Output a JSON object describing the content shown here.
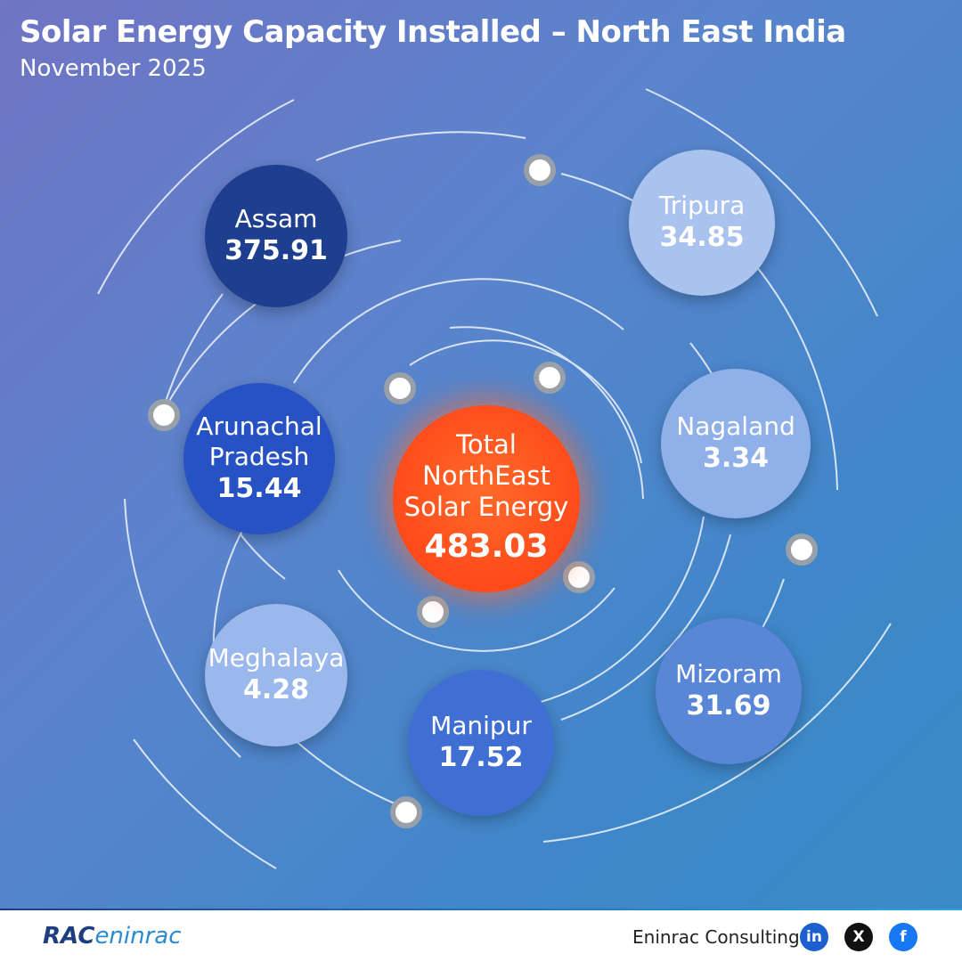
{
  "header": {
    "title": "Solar Energy Capacity Installed – North East India",
    "subtitle": "November 2025"
  },
  "center": {
    "label": "Total NorthEast Solar Energy",
    "value": 483.03
  },
  "nodes": [
    {
      "label": "Assam",
      "value": 375.91
    },
    {
      "label": "Tripura",
      "value": 34.85
    },
    {
      "label": "Arunachal Pradesh",
      "value": 15.44
    },
    {
      "label": "Nagaland",
      "value": 3.34
    },
    {
      "label": "Meghalaya",
      "value": 4.28
    },
    {
      "label": "Manipur",
      "value": 17.52
    },
    {
      "label": "Mizoram",
      "value": 31.69
    }
  ],
  "footer": {
    "logo": [
      "RAC",
      "eninrac"
    ],
    "company": "Eninrac Consulting",
    "social": [
      "in",
      "X",
      "f"
    ]
  }
}
